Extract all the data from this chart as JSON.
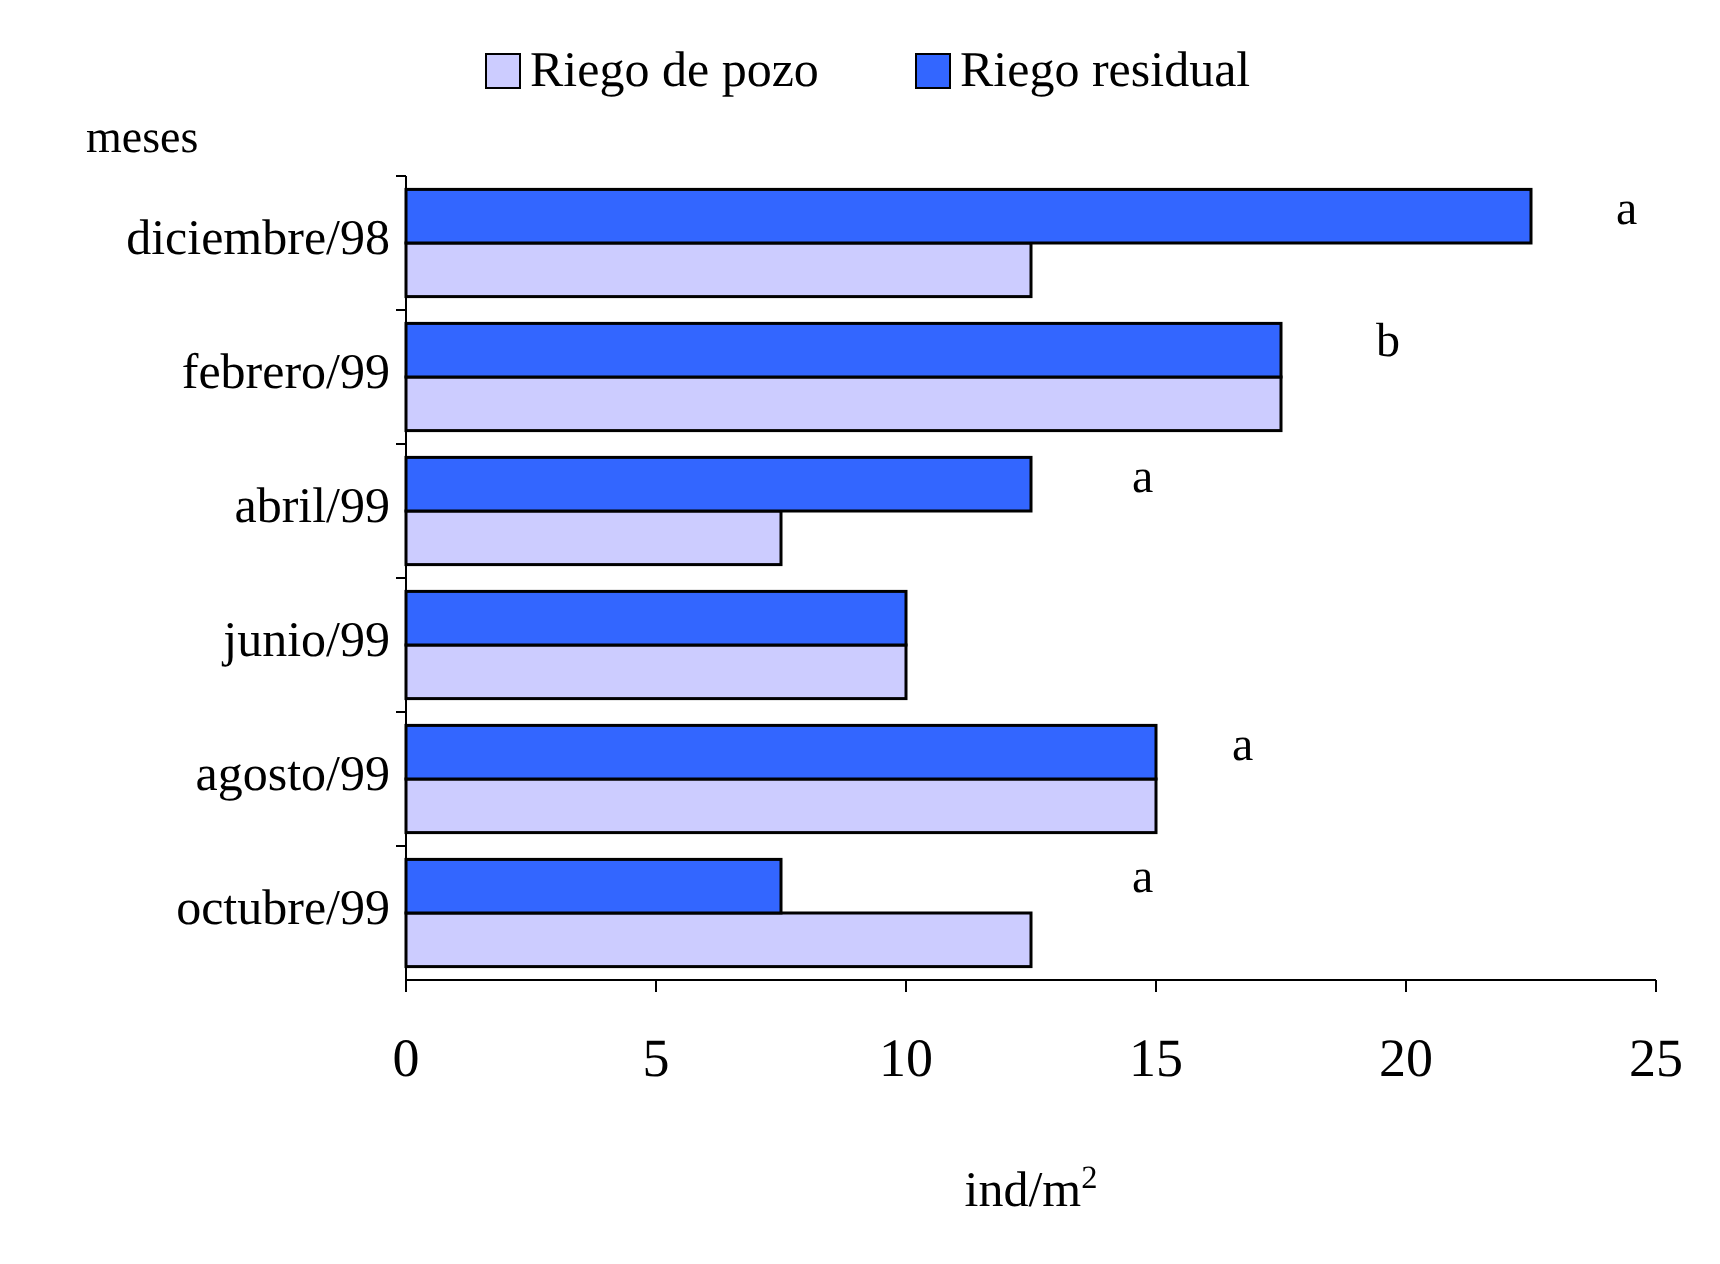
{
  "chart_data": {
    "type": "bar",
    "orientation": "horizontal",
    "xlabel": "ind/m$^{2}$",
    "ylabel": "meses",
    "categories": [
      "diciembre/98",
      "febrero/99",
      "abril/99",
      "junio/99",
      "agosto/99",
      "octubre/99"
    ],
    "series": [
      {
        "name": "Riego de pozo",
        "color": "#ccccff",
        "values": [
          12.5,
          17.5,
          7.5,
          10,
          15,
          12.5
        ]
      },
      {
        "name": "Riego residual",
        "color": "#3366ff",
        "values": [
          22.5,
          17.5,
          12.5,
          10,
          15,
          7.5
        ]
      }
    ],
    "xlim": [
      0,
      25
    ],
    "xticks": [
      0,
      5,
      10,
      15,
      20,
      25
    ],
    "grid": false,
    "legend": "top",
    "annotations": [
      "a",
      "b",
      "a",
      "a",
      "a"
    ]
  }
}
